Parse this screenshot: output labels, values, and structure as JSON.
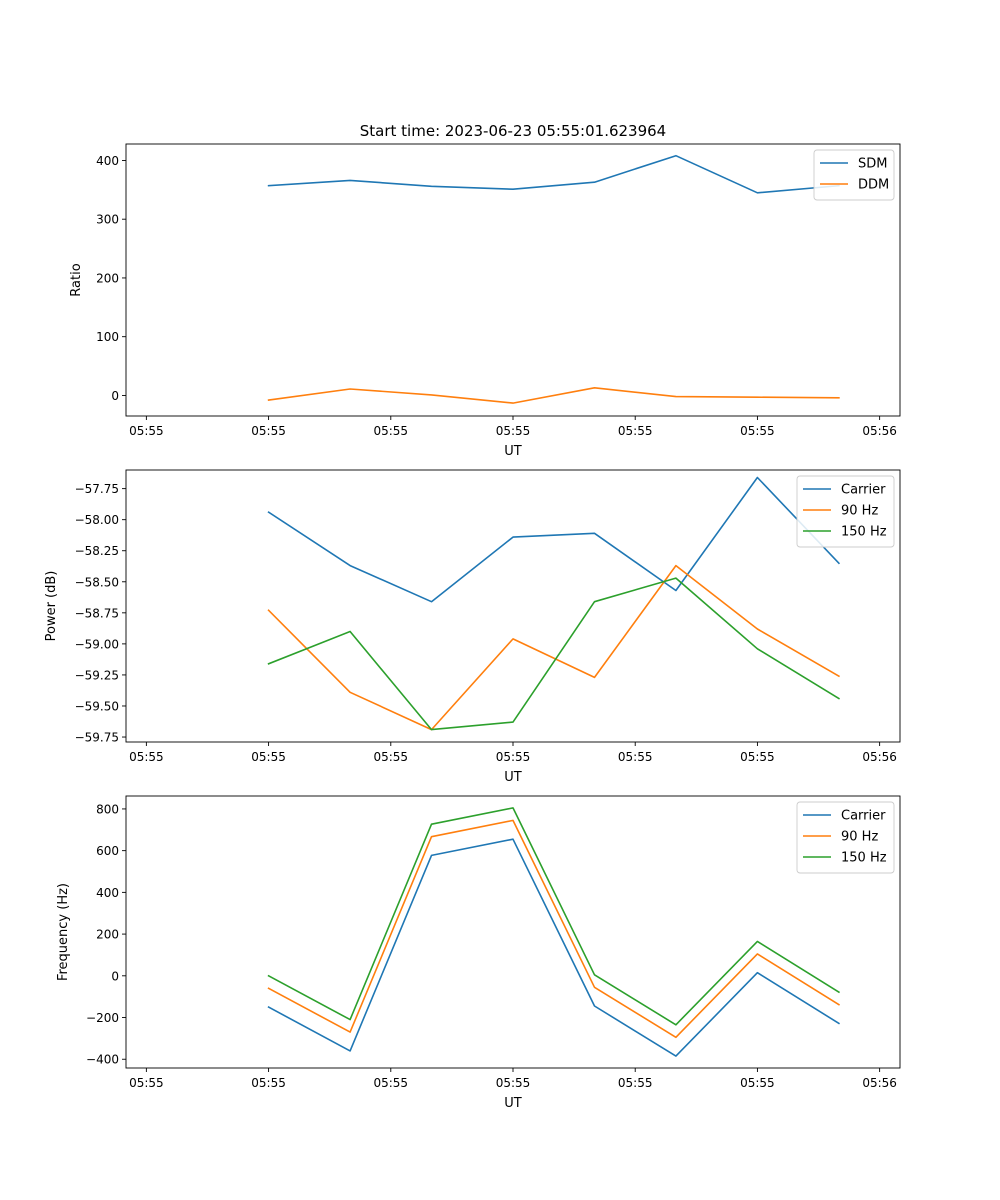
{
  "title": "Start time: 2023-06-23 05:55:01.623964",
  "chart_data": [
    {
      "type": "line",
      "title": "Start time: 2023-06-23 05:55:01.623964",
      "xlabel": "UT",
      "ylabel": "Ratio",
      "x": [
        1.0,
        2.0,
        3.0,
        4.0,
        5.0,
        6.0,
        7.0,
        8.0
      ],
      "xlim": [
        -0.75,
        8.75
      ],
      "xticks": [
        -0.5,
        1.0,
        2.5,
        4.0,
        5.5,
        7.0,
        8.5
      ],
      "xticklabels": [
        "05:55",
        "05:55",
        "05:55",
        "05:55",
        "05:55",
        "05:55",
        "05:56"
      ],
      "ylim": [
        -35,
        428
      ],
      "yticks": [
        0,
        100,
        200,
        300,
        400
      ],
      "yticklabels": [
        "0",
        "100",
        "200",
        "300",
        "400"
      ],
      "legend": "top-right",
      "grid": false,
      "series": [
        {
          "name": "SDM",
          "color": "#1f77b4",
          "values": [
            357,
            366,
            356,
            351,
            363,
            408,
            345,
            357
          ]
        },
        {
          "name": "DDM",
          "color": "#ff7f0e",
          "values": [
            -8,
            11,
            1,
            -13,
            13,
            -2,
            -3,
            -4
          ]
        }
      ]
    },
    {
      "type": "line",
      "title": "",
      "xlabel": "UT",
      "ylabel": "Power (dB)",
      "x": [
        1.0,
        2.0,
        3.0,
        4.0,
        5.0,
        6.0,
        7.0,
        8.0
      ],
      "xlim": [
        -0.75,
        8.75
      ],
      "xticks": [
        -0.5,
        1.0,
        2.5,
        4.0,
        5.5,
        7.0,
        8.5
      ],
      "xticklabels": [
        "05:55",
        "05:55",
        "05:55",
        "05:55",
        "05:55",
        "05:55",
        "05:56"
      ],
      "ylim": [
        -59.79,
        -57.6
      ],
      "yticks": [
        -59.75,
        -59.5,
        -59.25,
        -59.0,
        -58.75,
        -58.5,
        -58.25,
        -58.0,
        -57.75
      ],
      "yticklabels": [
        "−59.75",
        "−59.50",
        "−59.25",
        "−59.00",
        "−58.75",
        "−58.50",
        "−58.25",
        "−58.00",
        "−57.75"
      ],
      "legend": "top-right",
      "grid": false,
      "series": [
        {
          "name": "Carrier",
          "color": "#1f77b4",
          "values": [
            -57.94,
            -58.37,
            -58.66,
            -58.14,
            -58.11,
            -58.57,
            -57.66,
            -58.35
          ]
        },
        {
          "name": "90 Hz",
          "color": "#ff7f0e",
          "values": [
            -58.73,
            -59.39,
            -59.69,
            -58.96,
            -59.27,
            -58.37,
            -58.88,
            -59.26
          ]
        },
        {
          "name": "150 Hz",
          "color": "#2ca02c",
          "values": [
            -59.16,
            -58.9,
            -59.69,
            -59.63,
            -58.66,
            -58.47,
            -59.04,
            -59.44
          ]
        }
      ]
    },
    {
      "type": "line",
      "title": "",
      "xlabel": "UT",
      "ylabel": "Frequency (Hz)",
      "x": [
        1.0,
        2.0,
        3.0,
        4.0,
        5.0,
        6.0,
        7.0,
        8.0
      ],
      "xlim": [
        -0.75,
        8.75
      ],
      "xticks": [
        -0.5,
        1.0,
        2.5,
        4.0,
        5.5,
        7.0,
        8.5
      ],
      "xticklabels": [
        "05:55",
        "05:55",
        "05:55",
        "05:55",
        "05:55",
        "05:55",
        "05:56"
      ],
      "ylim": [
        -442,
        862
      ],
      "yticks": [
        -400,
        -200,
        0,
        200,
        400,
        600,
        800
      ],
      "yticklabels": [
        "−400",
        "−200",
        "0",
        "200",
        "400",
        "600",
        "800"
      ],
      "legend": "top-right",
      "grid": false,
      "series": [
        {
          "name": "Carrier",
          "color": "#1f77b4",
          "values": [
            -150,
            -360,
            577,
            655,
            -145,
            -385,
            15,
            -228
          ]
        },
        {
          "name": "90 Hz",
          "color": "#ff7f0e",
          "values": [
            -60,
            -270,
            667,
            745,
            -55,
            -295,
            105,
            -138
          ]
        },
        {
          "name": "150 Hz",
          "color": "#2ca02c",
          "values": [
            0,
            -210,
            727,
            805,
            5,
            -235,
            165,
            -78
          ]
        }
      ]
    }
  ]
}
